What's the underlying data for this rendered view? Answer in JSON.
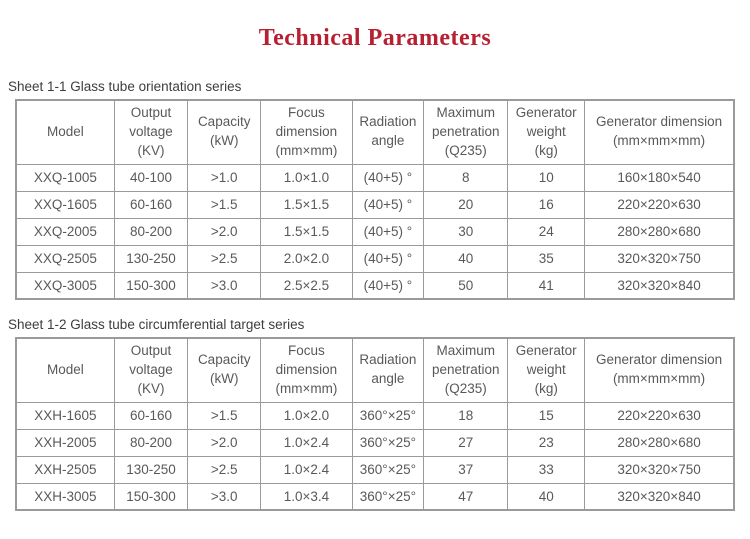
{
  "theme": {
    "title_color": "#b72030",
    "table_border_color": "#9a9a9a",
    "table_text_color": "#595959",
    "label_text_color": "#3d3d3d",
    "background_color": "#ffffff"
  },
  "page": {
    "title": "Technical Parameters"
  },
  "sections": [
    {
      "label": "Sheet 1-1 Glass tube orientation series",
      "table": {
        "headers": [
          "Model",
          "Output\nvoltage\n(KV)",
          "Capacity\n(kW)",
          "Focus\ndimension\n(mm×mm)",
          "Radiation\nangle",
          "Maximum\npenetration\n(Q235)",
          "Generator\nweight\n(kg)",
          "Generator dimension\n(mm×mm×mm)"
        ],
        "rows": [
          [
            "XXQ-1005",
            "40-100",
            ">1.0",
            "1.0×1.0",
            "(40+5) °",
            "8",
            "10",
            "160×180×540"
          ],
          [
            "XXQ-1605",
            "60-160",
            ">1.5",
            "1.5×1.5",
            "(40+5) °",
            "20",
            "16",
            "220×220×630"
          ],
          [
            "XXQ-2005",
            "80-200",
            ">2.0",
            "1.5×1.5",
            "(40+5) °",
            "30",
            "24",
            "280×280×680"
          ],
          [
            "XXQ-2505",
            "130-250",
            ">2.5",
            "2.0×2.0",
            "(40+5) °",
            "40",
            "35",
            "320×320×750"
          ],
          [
            "XXQ-3005",
            "150-300",
            ">3.0",
            "2.5×2.5",
            "(40+5) °",
            "50",
            "41",
            "320×320×840"
          ]
        ]
      }
    },
    {
      "label": "Sheet 1-2 Glass tube circumferential target series",
      "table": {
        "headers": [
          "Model",
          "Output\nvoltage\n(KV)",
          "Capacity\n(kW)",
          "Focus\ndimension\n(mm×mm)",
          "Radiation\nangle",
          "Maximum\npenetration\n(Q235)",
          "Generator\nweight\n(kg)",
          "Generator dimension\n(mm×mm×mm)"
        ],
        "rows": [
          [
            "XXH-1605",
            "60-160",
            ">1.5",
            "1.0×2.0",
            "360°×25°",
            "18",
            "15",
            "220×220×630"
          ],
          [
            "XXH-2005",
            "80-200",
            ">2.0",
            "1.0×2.4",
            "360°×25°",
            "27",
            "23",
            "280×280×680"
          ],
          [
            "XXH-2505",
            "130-250",
            ">2.5",
            "1.0×2.4",
            "360°×25°",
            "37",
            "33",
            "320×320×750"
          ],
          [
            "XXH-3005",
            "150-300",
            ">3.0",
            "1.0×3.4",
            "360°×25°",
            "47",
            "40",
            "320×320×840"
          ]
        ]
      }
    }
  ]
}
